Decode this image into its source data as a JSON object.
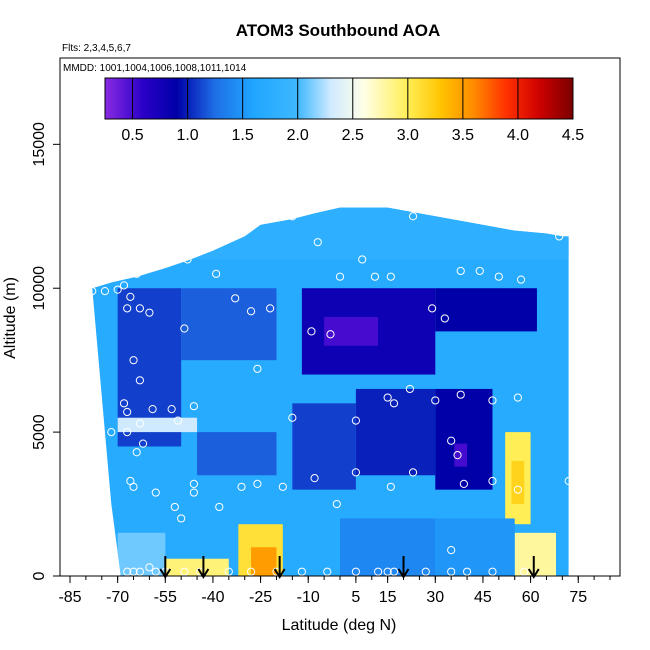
{
  "chart_data": {
    "type": "heatmap",
    "title": "ATOM3 Southbound AOA",
    "flights_note": "Flts: 2,3,4,5,6,7",
    "dates_note": "MMDD: 1001,1004,1006,1008,1011,1014",
    "xlabel": "Latitude (deg N)",
    "ylabel": "Altitude (m)",
    "xlim": [
      -85,
      85
    ],
    "ylim": [
      0,
      18000
    ],
    "x_ticks": [
      -85,
      -70,
      -55,
      -40,
      -25,
      -10,
      5,
      15,
      30,
      45,
      60,
      75
    ],
    "y_ticks": [
      0,
      5000,
      10000,
      15000
    ],
    "colorbar": {
      "range": [
        0.25,
        4.5
      ],
      "ticks": [
        "0.5",
        "1.0",
        "1.5",
        "2.0",
        "2.5",
        "3.0",
        "3.5",
        "4.0",
        "4.5"
      ],
      "tick_values": [
        0.5,
        1.0,
        1.5,
        2.0,
        2.5,
        3.0,
        3.5,
        4.0,
        4.5
      ],
      "color_stops": [
        [
          0.25,
          "#8a2be2"
        ],
        [
          0.6,
          "#2a00c8"
        ],
        [
          0.9,
          "#0000a8"
        ],
        [
          1.25,
          "#1f6fe6"
        ],
        [
          1.6,
          "#1fa6ff"
        ],
        [
          2.0,
          "#3fb8ff"
        ],
        [
          2.3,
          "#cfeaff"
        ],
        [
          2.6,
          "#ffffe6"
        ],
        [
          3.0,
          "#ffee55"
        ],
        [
          3.3,
          "#ffc400"
        ],
        [
          3.6,
          "#ff8a00"
        ],
        [
          3.9,
          "#ff3000"
        ],
        [
          4.2,
          "#cc0000"
        ],
        [
          4.5,
          "#7a0000"
        ]
      ]
    },
    "profile_markers_lat": [
      -55,
      -43,
      -19,
      20,
      61
    ],
    "upper_bound": [
      [
        -78,
        10000
      ],
      [
        -72,
        10200
      ],
      [
        -64,
        10400
      ],
      [
        -55,
        10700
      ],
      [
        -47,
        11000
      ],
      [
        -40,
        11300
      ],
      [
        -30,
        11800
      ],
      [
        -25,
        12200
      ],
      [
        -15,
        12400
      ],
      [
        -8,
        12600
      ],
      [
        0,
        12800
      ],
      [
        15,
        12800
      ],
      [
        25,
        12600
      ],
      [
        35,
        12400
      ],
      [
        45,
        12200
      ],
      [
        55,
        12000
      ],
      [
        65,
        11900
      ],
      [
        70,
        11800
      ]
    ],
    "lower_left_edge": [
      [
        -78,
        10000
      ],
      [
        -76,
        7500
      ],
      [
        -74,
        5000
      ],
      [
        -72,
        2500
      ],
      [
        -69,
        0
      ]
    ],
    "right_edge_lat": 72,
    "regions": [
      {
        "lat": [
          -80,
          72
        ],
        "alt": [
          0,
          13000
        ],
        "aoa": 1.7
      },
      {
        "lat": [
          -70,
          -50
        ],
        "alt": [
          4500,
          10000
        ],
        "aoa": 1.1
      },
      {
        "lat": [
          -50,
          -20
        ],
        "alt": [
          7500,
          10000
        ],
        "aoa": 1.2
      },
      {
        "lat": [
          -12,
          30
        ],
        "alt": [
          7000,
          10000
        ],
        "aoa": 0.8
      },
      {
        "lat": [
          -5,
          12
        ],
        "alt": [
          8000,
          9000
        ],
        "aoa": 0.5
      },
      {
        "lat": [
          30,
          62
        ],
        "alt": [
          8500,
          10000
        ],
        "aoa": 0.9
      },
      {
        "lat": [
          5,
          30
        ],
        "alt": [
          3500,
          6500
        ],
        "aoa": 1.0
      },
      {
        "lat": [
          30,
          48
        ],
        "alt": [
          3000,
          6500
        ],
        "aoa": 0.9
      },
      {
        "lat": [
          36,
          40
        ],
        "alt": [
          3800,
          4600
        ],
        "aoa": 0.5
      },
      {
        "lat": [
          -15,
          5
        ],
        "alt": [
          3000,
          6000
        ],
        "aoa": 1.1
      },
      {
        "lat": [
          -45,
          -20
        ],
        "alt": [
          3500,
          5000
        ],
        "aoa": 1.2
      },
      {
        "lat": [
          -70,
          -45
        ],
        "alt": [
          5000,
          5500
        ],
        "aoa": 2.3
      },
      {
        "lat": [
          -32,
          -18
        ],
        "alt": [
          0,
          1800
        ],
        "aoa": 3.1
      },
      {
        "lat": [
          -28,
          -20
        ],
        "alt": [
          0,
          1000
        ],
        "aoa": 3.5
      },
      {
        "lat": [
          -55,
          -35
        ],
        "alt": [
          0,
          600
        ],
        "aoa": 2.9
      },
      {
        "lat": [
          52,
          60
        ],
        "alt": [
          1800,
          5000
        ],
        "aoa": 3.0
      },
      {
        "lat": [
          54,
          58
        ],
        "alt": [
          2500,
          4000
        ],
        "aoa": 3.2
      },
      {
        "lat": [
          55,
          68
        ],
        "alt": [
          0,
          1500
        ],
        "aoa": 2.8
      },
      {
        "lat": [
          -70,
          -55
        ],
        "alt": [
          0,
          1500
        ],
        "aoa": 2.1
      },
      {
        "lat": [
          0,
          30
        ],
        "alt": [
          0,
          2000
        ],
        "aoa": 1.4
      },
      {
        "lat": [
          30,
          55
        ],
        "alt": [
          0,
          2000
        ],
        "aoa": 1.5
      },
      {
        "lat": [
          -80,
          72
        ],
        "alt": [
          11000,
          13000
        ],
        "aoa": 1.8
      }
    ],
    "samples": [
      {
        "lat": -78,
        "alt": 9900
      },
      {
        "lat": -74,
        "alt": 9900
      },
      {
        "lat": -70,
        "alt": 9950
      },
      {
        "lat": -68,
        "alt": 10100
      },
      {
        "lat": -66,
        "alt": 9700
      },
      {
        "lat": -67,
        "alt": 9300
      },
      {
        "lat": -63,
        "alt": 9300
      },
      {
        "lat": -60,
        "alt": 9150
      },
      {
        "lat": -64,
        "alt": 10500
      },
      {
        "lat": -58,
        "alt": 10900
      },
      {
        "lat": -48,
        "alt": 11000
      },
      {
        "lat": -39,
        "alt": 10500
      },
      {
        "lat": -49,
        "alt": 8600
      },
      {
        "lat": -33,
        "alt": 9650
      },
      {
        "lat": -28,
        "alt": 9200
      },
      {
        "lat": -22,
        "alt": 9300
      },
      {
        "lat": -15,
        "alt": 12500
      },
      {
        "lat": -7,
        "alt": 11600
      },
      {
        "lat": 0,
        "alt": 10400
      },
      {
        "lat": 7,
        "alt": 11000
      },
      {
        "lat": 11,
        "alt": 10400
      },
      {
        "lat": 16,
        "alt": 10400
      },
      {
        "lat": 23,
        "alt": 12500
      },
      {
        "lat": 29,
        "alt": 9300
      },
      {
        "lat": 33,
        "alt": 8950
      },
      {
        "lat": 38,
        "alt": 10600
      },
      {
        "lat": 44,
        "alt": 10600
      },
      {
        "lat": 50,
        "alt": 10400
      },
      {
        "lat": 57,
        "alt": 10300
      },
      {
        "lat": 69,
        "alt": 11800
      },
      {
        "lat": -9,
        "alt": 8500
      },
      {
        "lat": -3,
        "alt": 8400
      },
      {
        "lat": -65,
        "alt": 7500
      },
      {
        "lat": -63,
        "alt": 6800
      },
      {
        "lat": -26,
        "alt": 7200
      },
      {
        "lat": -68,
        "alt": 6000
      },
      {
        "lat": -67,
        "alt": 5700
      },
      {
        "lat": -72,
        "alt": 5000
      },
      {
        "lat": -67,
        "alt": 5000
      },
      {
        "lat": -63,
        "alt": 5300
      },
      {
        "lat": -59,
        "alt": 5800
      },
      {
        "lat": -53,
        "alt": 5800
      },
      {
        "lat": -51,
        "alt": 5400
      },
      {
        "lat": -46,
        "alt": 5900
      },
      {
        "lat": -62,
        "alt": 4600
      },
      {
        "lat": -64,
        "alt": 4300
      },
      {
        "lat": -15,
        "alt": 5500
      },
      {
        "lat": 5,
        "alt": 5400
      },
      {
        "lat": 15,
        "alt": 6200
      },
      {
        "lat": 17,
        "alt": 6000
      },
      {
        "lat": 22,
        "alt": 6500
      },
      {
        "lat": 30,
        "alt": 6100
      },
      {
        "lat": 38,
        "alt": 6300
      },
      {
        "lat": 48,
        "alt": 6100
      },
      {
        "lat": 56,
        "alt": 6200
      },
      {
        "lat": 35,
        "alt": 4700
      },
      {
        "lat": 37,
        "alt": 4200
      },
      {
        "lat": -18,
        "alt": 3100
      },
      {
        "lat": -8,
        "alt": 3400
      },
      {
        "lat": 5,
        "alt": 3600
      },
      {
        "lat": 16,
        "alt": 3100
      },
      {
        "lat": 23,
        "alt": 3600
      },
      {
        "lat": 39,
        "alt": 3200
      },
      {
        "lat": 48,
        "alt": 3300
      },
      {
        "lat": 56,
        "alt": 3000
      },
      {
        "lat": -66,
        "alt": 3300
      },
      {
        "lat": -65,
        "alt": 3100
      },
      {
        "lat": -58,
        "alt": 2900
      },
      {
        "lat": -46,
        "alt": 3200
      },
      {
        "lat": -46,
        "alt": 2900
      },
      {
        "lat": -31,
        "alt": 3100
      },
      {
        "lat": -26,
        "alt": 3200
      },
      {
        "lat": -52,
        "alt": 2400
      },
      {
        "lat": -50,
        "alt": 2000
      },
      {
        "lat": -38,
        "alt": 2400
      },
      {
        "lat": -1,
        "alt": 2500
      },
      {
        "lat": -67,
        "alt": 150
      },
      {
        "lat": -65,
        "alt": 150
      },
      {
        "lat": -63,
        "alt": 150
      },
      {
        "lat": -58,
        "alt": 150
      },
      {
        "lat": -55,
        "alt": 150
      },
      {
        "lat": -49,
        "alt": 150
      },
      {
        "lat": -44,
        "alt": 150
      },
      {
        "lat": -35,
        "alt": 150
      },
      {
        "lat": -28,
        "alt": 150
      },
      {
        "lat": -20,
        "alt": 150
      },
      {
        "lat": -12,
        "alt": 150
      },
      {
        "lat": -4,
        "alt": 150
      },
      {
        "lat": 5,
        "alt": 150
      },
      {
        "lat": 12,
        "alt": 150
      },
      {
        "lat": 15,
        "alt": 150
      },
      {
        "lat": 17,
        "alt": 150
      },
      {
        "lat": 27,
        "alt": 150
      },
      {
        "lat": 35,
        "alt": 150
      },
      {
        "lat": 40,
        "alt": 150
      },
      {
        "lat": 48,
        "alt": 150
      },
      {
        "lat": 58,
        "alt": 150
      },
      {
        "lat": 35,
        "alt": 900
      },
      {
        "lat": -60,
        "alt": 300
      },
      {
        "lat": 72,
        "alt": 3300
      }
    ]
  }
}
